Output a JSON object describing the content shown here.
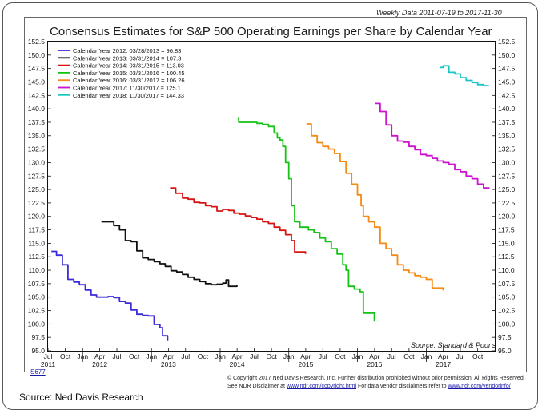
{
  "header": {
    "weekly_note": "Weekly Data 2011-07-19 to 2017-11-30",
    "title": "Consensus Estimates for S&P 500 Operating Earnings per Share by Calendar Year"
  },
  "footer": {
    "chart_code": "S677",
    "copyright_line1": "© Copyright 2017 Ned Davis Research, Inc. Further distribution prohibited without prior permission. All Rights Reserved.",
    "copyright_line2_a": "See NDR Disclaimer at ",
    "copyright_link1": "www.ndr.com/copyright.html",
    "copyright_line2_b": "  For data vendor disclaimers refer to ",
    "copyright_link2": "www.ndr.com/vendorinfo/",
    "source_caption": "Source: Ned Davis Research"
  },
  "chart_data": {
    "type": "line",
    "title": "Consensus Estimates for S&P 500 Operating Earnings per Share by Calendar Year",
    "source_note": "Source:  Standard & Poor's",
    "ylim": [
      95,
      152.5
    ],
    "xlim": [
      "2011-07-01",
      "2017-12-31"
    ],
    "y_ticks": [
      95.0,
      97.5,
      100.0,
      102.5,
      105.0,
      107.5,
      110.0,
      112.5,
      115.0,
      117.5,
      120.0,
      122.5,
      125.0,
      127.5,
      130.0,
      132.5,
      135.0,
      137.5,
      140.0,
      142.5,
      145.0,
      147.5,
      150.0,
      152.5
    ],
    "y_tick_labels": [
      "95.0",
      "97.5",
      "100.0",
      "102.5",
      "105.0",
      "107.5",
      "110.0",
      "112.5",
      "115.0",
      "117.5",
      "120.0",
      "122.5",
      "125.0",
      "127.5",
      "130.0",
      "132.5",
      "135.0",
      "137.5",
      "140.0",
      "142.5",
      "145.0",
      "147.5",
      "150.0",
      "152.5"
    ],
    "x_month_ticks": [
      {
        "date": "2011-07-01",
        "label": "Jul"
      },
      {
        "date": "2011-10-01",
        "label": "Oct"
      },
      {
        "date": "2012-01-01",
        "label": "Jan"
      },
      {
        "date": "2012-04-01",
        "label": "Apr"
      },
      {
        "date": "2012-07-01",
        "label": "Jul"
      },
      {
        "date": "2012-10-01",
        "label": "Oct"
      },
      {
        "date": "2013-01-01",
        "label": "Jan"
      },
      {
        "date": "2013-04-01",
        "label": "Apr"
      },
      {
        "date": "2013-07-01",
        "label": "Jul"
      },
      {
        "date": "2013-10-01",
        "label": "Oct"
      },
      {
        "date": "2014-01-01",
        "label": "Jan"
      },
      {
        "date": "2014-04-01",
        "label": "Apr"
      },
      {
        "date": "2014-07-01",
        "label": "Jul"
      },
      {
        "date": "2014-10-01",
        "label": "Oct"
      },
      {
        "date": "2015-01-01",
        "label": "Jan"
      },
      {
        "date": "2015-04-01",
        "label": "Apr"
      },
      {
        "date": "2015-07-01",
        "label": "Jul"
      },
      {
        "date": "2015-10-01",
        "label": "Oct"
      },
      {
        "date": "2016-01-01",
        "label": "Jan"
      },
      {
        "date": "2016-04-01",
        "label": "Apr"
      },
      {
        "date": "2016-07-01",
        "label": "Jul"
      },
      {
        "date": "2016-10-01",
        "label": "Oct"
      },
      {
        "date": "2017-01-01",
        "label": "Jan"
      },
      {
        "date": "2017-04-01",
        "label": "Apr"
      },
      {
        "date": "2017-07-01",
        "label": "Jul"
      },
      {
        "date": "2017-10-01",
        "label": "Oct"
      }
    ],
    "x_year_labels": [
      {
        "date": "2011-07-01",
        "label": "2011"
      },
      {
        "date": "2012-04-01",
        "label": "2012"
      },
      {
        "date": "2013-04-01",
        "label": "2013"
      },
      {
        "date": "2014-04-01",
        "label": "2014"
      },
      {
        "date": "2015-04-01",
        "label": "2015"
      },
      {
        "date": "2016-04-01",
        "label": "2016"
      },
      {
        "date": "2017-04-01",
        "label": "2017"
      }
    ],
    "legend_position": "top-left",
    "series": [
      {
        "name": "Calendar Year 2012: 03/28/2013 = 96.83",
        "color": "#3b2bd8",
        "points": [
          [
            "2011-07-19",
            113.5
          ],
          [
            "2011-08-15",
            112.8
          ],
          [
            "2011-09-15",
            111.0
          ],
          [
            "2011-10-15",
            108.3
          ],
          [
            "2011-11-15",
            107.8
          ],
          [
            "2011-12-15",
            107.3
          ],
          [
            "2012-01-15",
            106.3
          ],
          [
            "2012-02-15",
            105.4
          ],
          [
            "2012-03-15",
            105.0
          ],
          [
            "2012-04-15",
            105.0
          ],
          [
            "2012-05-15",
            105.1
          ],
          [
            "2012-06-15",
            104.9
          ],
          [
            "2012-07-15",
            104.2
          ],
          [
            "2012-08-15",
            103.9
          ],
          [
            "2012-09-15",
            102.6
          ],
          [
            "2012-10-15",
            101.8
          ],
          [
            "2012-11-15",
            101.6
          ],
          [
            "2012-12-15",
            101.5
          ],
          [
            "2013-01-15",
            99.9
          ],
          [
            "2013-02-15",
            99.3
          ],
          [
            "2013-03-01",
            97.8
          ],
          [
            "2013-03-28",
            96.83
          ]
        ]
      },
      {
        "name": "Calendar Year 2013: 03/31/2014 = 107.3",
        "color": "#111111",
        "points": [
          [
            "2012-04-10",
            119.0
          ],
          [
            "2012-05-15",
            119.0
          ],
          [
            "2012-06-15",
            118.3
          ],
          [
            "2012-07-15",
            117.5
          ],
          [
            "2012-08-15",
            115.5
          ],
          [
            "2012-09-15",
            115.3
          ],
          [
            "2012-10-15",
            113.6
          ],
          [
            "2012-11-15",
            112.3
          ],
          [
            "2012-12-15",
            112.0
          ],
          [
            "2013-01-15",
            111.6
          ],
          [
            "2013-02-15",
            111.2
          ],
          [
            "2013-03-15",
            110.7
          ],
          [
            "2013-04-15",
            109.9
          ],
          [
            "2013-05-15",
            109.7
          ],
          [
            "2013-06-15",
            109.2
          ],
          [
            "2013-07-15",
            108.7
          ],
          [
            "2013-08-15",
            108.3
          ],
          [
            "2013-09-15",
            107.9
          ],
          [
            "2013-10-15",
            107.5
          ],
          [
            "2013-11-15",
            107.3
          ],
          [
            "2013-12-15",
            107.4
          ],
          [
            "2014-01-15",
            107.6
          ],
          [
            "2014-02-01",
            108.2
          ],
          [
            "2014-02-15",
            107.0
          ],
          [
            "2014-03-31",
            107.3
          ]
        ]
      },
      {
        "name": "Calendar Year 2014: 03/31/2015 = 113.03",
        "color": "#d81515",
        "points": [
          [
            "2013-04-10",
            125.3
          ],
          [
            "2013-05-10",
            124.3
          ],
          [
            "2013-06-15",
            123.4
          ],
          [
            "2013-07-15",
            123.2
          ],
          [
            "2013-08-15",
            122.6
          ],
          [
            "2013-09-15",
            122.5
          ],
          [
            "2013-10-15",
            122.0
          ],
          [
            "2013-11-15",
            121.8
          ],
          [
            "2013-12-15",
            121.0
          ],
          [
            "2014-01-15",
            121.3
          ],
          [
            "2014-02-15",
            121.1
          ],
          [
            "2014-03-15",
            120.6
          ],
          [
            "2014-04-15",
            120.4
          ],
          [
            "2014-05-15",
            120.1
          ],
          [
            "2014-06-15",
            119.8
          ],
          [
            "2014-07-15",
            119.5
          ],
          [
            "2014-08-15",
            119.0
          ],
          [
            "2014-09-15",
            118.7
          ],
          [
            "2014-10-15",
            118.0
          ],
          [
            "2014-11-15",
            117.4
          ],
          [
            "2014-12-15",
            116.6
          ],
          [
            "2015-01-15",
            115.5
          ],
          [
            "2015-02-01",
            113.4
          ],
          [
            "2015-03-31",
            113.03
          ]
        ]
      },
      {
        "name": "Calendar Year 2015: 03/31/2016 = 100.45",
        "color": "#14c414",
        "points": [
          [
            "2014-04-05",
            138.2
          ],
          [
            "2014-04-10",
            137.5
          ],
          [
            "2014-05-15",
            137.5
          ],
          [
            "2014-06-15",
            137.5
          ],
          [
            "2014-07-15",
            137.3
          ],
          [
            "2014-08-15",
            137.1
          ],
          [
            "2014-09-15",
            136.7
          ],
          [
            "2014-10-15",
            135.5
          ],
          [
            "2014-11-01",
            134.6
          ],
          [
            "2014-11-15",
            134.2
          ],
          [
            "2014-12-01",
            133.0
          ],
          [
            "2014-12-15",
            130.0
          ],
          [
            "2015-01-01",
            127.0
          ],
          [
            "2015-01-15",
            122.0
          ],
          [
            "2015-02-01",
            119.0
          ],
          [
            "2015-03-01",
            118.0
          ],
          [
            "2015-04-15",
            117.5
          ],
          [
            "2015-05-15",
            117.0
          ],
          [
            "2015-06-15",
            116.0
          ],
          [
            "2015-07-15",
            115.3
          ],
          [
            "2015-08-15",
            114.0
          ],
          [
            "2015-09-15",
            113.0
          ],
          [
            "2015-10-15",
            111.0
          ],
          [
            "2015-11-01",
            110.0
          ],
          [
            "2015-11-15",
            107.0
          ],
          [
            "2015-12-15",
            106.5
          ],
          [
            "2016-01-15",
            106.0
          ],
          [
            "2016-02-01",
            102.0
          ],
          [
            "2016-03-31",
            100.45
          ]
        ]
      },
      {
        "name": "Calendar Year 2016: 03/31/2017 = 106.26",
        "color": "#f58a14",
        "points": [
          [
            "2015-04-05",
            137.2
          ],
          [
            "2015-05-01",
            135.0
          ],
          [
            "2015-06-01",
            133.7
          ],
          [
            "2015-07-01",
            133.0
          ],
          [
            "2015-08-01",
            132.5
          ],
          [
            "2015-09-01",
            131.7
          ],
          [
            "2015-10-01",
            130.2
          ],
          [
            "2015-11-01",
            128.0
          ],
          [
            "2015-12-01",
            126.0
          ],
          [
            "2016-01-01",
            124.0
          ],
          [
            "2016-01-20",
            122.0
          ],
          [
            "2016-02-01",
            120.0
          ],
          [
            "2016-03-01",
            119.0
          ],
          [
            "2016-04-01",
            118.0
          ],
          [
            "2016-05-01",
            115.0
          ],
          [
            "2016-06-01",
            114.0
          ],
          [
            "2016-07-01",
            112.8
          ],
          [
            "2016-08-01",
            111.0
          ],
          [
            "2016-09-01",
            110.0
          ],
          [
            "2016-10-01",
            109.5
          ],
          [
            "2016-11-01",
            109.0
          ],
          [
            "2016-12-01",
            108.7
          ],
          [
            "2017-01-01",
            108.3
          ],
          [
            "2017-02-01",
            106.7
          ],
          [
            "2017-03-31",
            106.26
          ]
        ]
      },
      {
        "name": "Calendar Year 2017: 11/30/2017 = 125.1",
        "color": "#cc12cc",
        "points": [
          [
            "2016-04-05",
            141.0
          ],
          [
            "2016-05-01",
            139.5
          ],
          [
            "2016-06-01",
            137.0
          ],
          [
            "2016-07-01",
            135.0
          ],
          [
            "2016-08-01",
            134.0
          ],
          [
            "2016-09-01",
            133.8
          ],
          [
            "2016-10-01",
            133.0
          ],
          [
            "2016-11-01",
            132.4
          ],
          [
            "2016-12-01",
            131.5
          ],
          [
            "2017-01-01",
            131.3
          ],
          [
            "2017-02-01",
            130.8
          ],
          [
            "2017-03-01",
            130.3
          ],
          [
            "2017-04-01",
            130.0
          ],
          [
            "2017-05-01",
            129.7
          ],
          [
            "2017-06-01",
            128.7
          ],
          [
            "2017-07-01",
            128.3
          ],
          [
            "2017-08-01",
            127.5
          ],
          [
            "2017-09-01",
            127.0
          ],
          [
            "2017-10-01",
            126.0
          ],
          [
            "2017-11-01",
            125.3
          ],
          [
            "2017-11-30",
            125.1
          ]
        ]
      },
      {
        "name": "Calendar Year 2018: 11/30/2017 = 144.33",
        "color": "#18c6c6",
        "points": [
          [
            "2017-03-15",
            147.7
          ],
          [
            "2017-04-01",
            148.0
          ],
          [
            "2017-05-01",
            146.8
          ],
          [
            "2017-06-01",
            146.5
          ],
          [
            "2017-07-01",
            145.8
          ],
          [
            "2017-08-01",
            145.3
          ],
          [
            "2017-09-01",
            144.9
          ],
          [
            "2017-10-01",
            144.5
          ],
          [
            "2017-11-01",
            144.3
          ],
          [
            "2017-11-30",
            144.33
          ]
        ]
      }
    ]
  }
}
